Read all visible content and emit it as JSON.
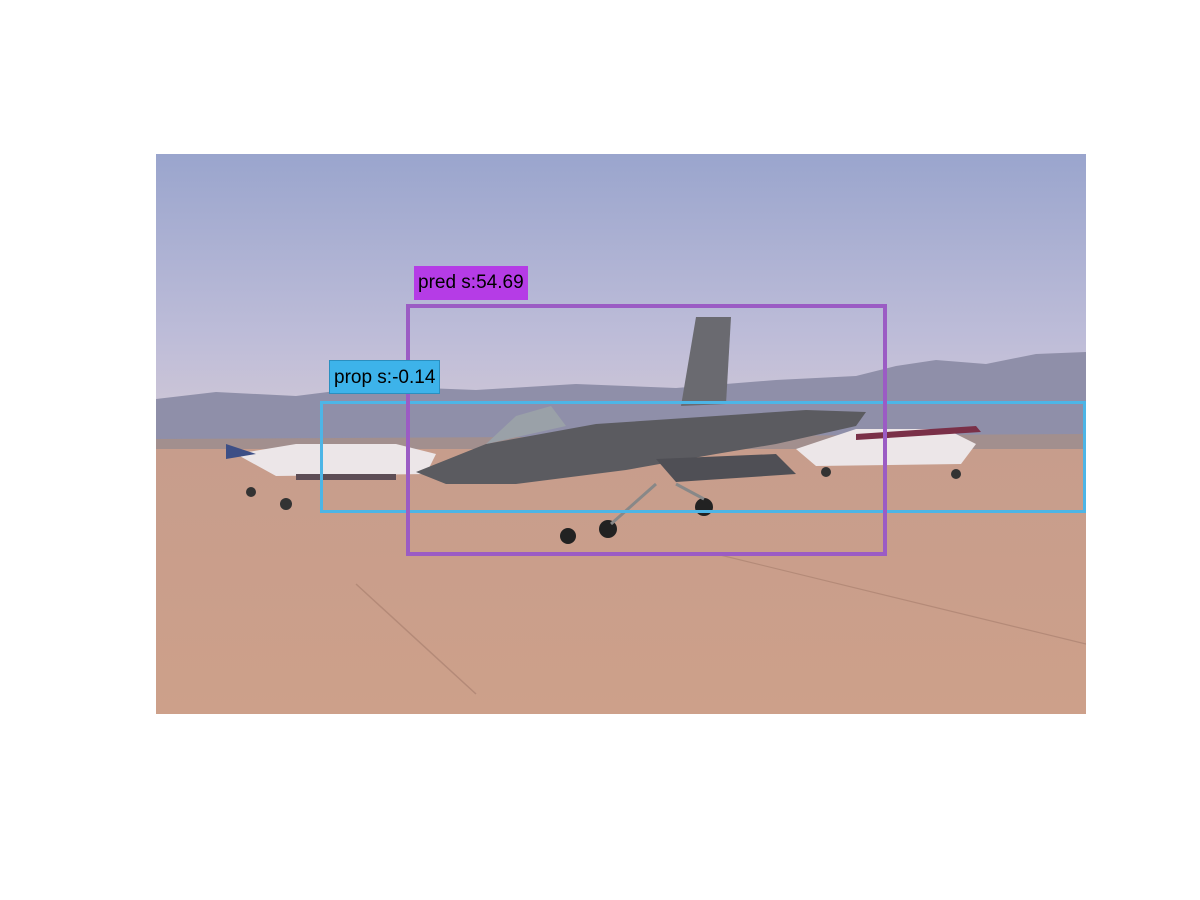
{
  "detections": [
    {
      "kind": "proposal",
      "text": "prop s:-0.14",
      "color": "#4db5e6",
      "label_color": "#3db3ea"
    },
    {
      "kind": "prediction",
      "text": "pred s:54.69",
      "color": "#9b5cc4",
      "label_color": "#b53ce6"
    }
  ],
  "scene": {
    "sky_top": "#9fa9cf",
    "sky_bottom": "#c9c4d8",
    "mountains": "#8e8ea8",
    "tarmac": "#c8a08a",
    "jet": "#5a5a5e",
    "small_plane": "#e8e4e6"
  }
}
